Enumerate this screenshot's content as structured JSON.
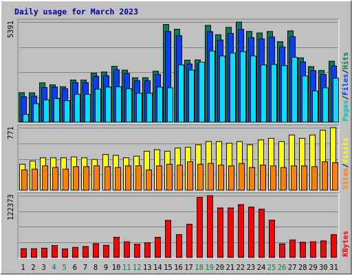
{
  "chart_data": {
    "type": "bar",
    "title": "Daily usage for March 2023",
    "categories": [
      "1",
      "2",
      "3",
      "4",
      "5",
      "6",
      "7",
      "8",
      "9",
      "10",
      "11",
      "12",
      "13",
      "14",
      "15",
      "16",
      "17",
      "18",
      "19",
      "20",
      "21",
      "22",
      "23",
      "24",
      "25",
      "26",
      "27",
      "28",
      "29",
      "30",
      "31"
    ],
    "weekend_days": [
      "4",
      "5",
      "11",
      "12",
      "18",
      "19",
      "25",
      "26"
    ],
    "panels": [
      {
        "id": "hits",
        "ymax_label": "5391",
        "ymax": 5391,
        "legend": [
          {
            "label": "Pages",
            "color": "#00c0c0"
          },
          {
            "label": "Files",
            "color": "#0040ff"
          },
          {
            "label": "Hits",
            "color": "#008040"
          }
        ],
        "series": [
          {
            "name": "Hits",
            "color": "#00805a",
            "values": [
              1590,
              1580,
              2120,
              2010,
              1910,
              2270,
              2270,
              2640,
              2700,
              3010,
              2800,
              2390,
              2390,
              2740,
              5260,
              5000,
              3340,
              3350,
              5210,
              4700,
              5100,
              5390,
              4880,
              4800,
              4880,
              4330,
              4910,
              3460,
              2990,
              2780,
              3280
            ]
          },
          {
            "name": "Files",
            "color": "#0040ff",
            "values": [
              1370,
              1400,
              1870,
              1890,
              1800,
              2130,
              2130,
              2470,
              2500,
              2820,
              2620,
              2230,
              2230,
              2570,
              4880,
              4650,
              3130,
              3140,
              4870,
              4420,
              4780,
              5000,
              4550,
              4480,
              4580,
              4050,
              4600,
              3240,
              2780,
              2570,
              3030
            ]
          },
          {
            "name": "Pages",
            "color": "#00e0ff",
            "values": [
              420,
              1000,
              1200,
              1270,
              1160,
              1500,
              1500,
              1780,
              1890,
              1910,
              1800,
              1560,
              1560,
              1890,
              1850,
              3080,
              2810,
              3230,
              3830,
              3560,
              3720,
              3800,
              3560,
              3080,
              3110,
              3040,
              3490,
              2490,
              1680,
              1850,
              2370
            ]
          }
        ]
      },
      {
        "id": "visits",
        "ymax_label": "771",
        "ymax": 771,
        "legend": [
          {
            "label": "Sites",
            "color": "#ff8000"
          },
          {
            "label": "Visits",
            "color": "#ffff00"
          }
        ],
        "series": [
          {
            "name": "Visits",
            "color": "#ffff00",
            "values": [
              320,
              360,
              400,
              400,
              400,
              410,
              400,
              380,
              440,
              430,
              400,
              420,
              480,
              500,
              480,
              520,
              530,
              560,
              600,
              600,
              580,
              600,
              560,
              620,
              640,
              600,
              680,
              640,
              680,
              740,
              771
            ]
          },
          {
            "name": "Sites",
            "color": "#ff8000",
            "values": [
              250,
              260,
              300,
              280,
              260,
              290,
              290,
              300,
              290,
              280,
              300,
              300,
              250,
              300,
              320,
              310,
              350,
              320,
              330,
              310,
              300,
              330,
              280,
              310,
              300,
              280,
              300,
              300,
              290,
              350,
              340
            ]
          }
        ]
      },
      {
        "id": "kbytes",
        "ymax_label": "122373",
        "ymax": 122373,
        "legend": [
          {
            "label": "KBytes",
            "color": "#ff0000"
          }
        ],
        "series": [
          {
            "name": "KBytes",
            "color": "#ff0000",
            "values": [
              17400,
              17300,
              18400,
              23800,
              16900,
              20100,
              21700,
              27300,
              24000,
              40100,
              31100,
              26500,
              29300,
              40000,
              73500,
              45200,
              65900,
              118900,
              122373,
              98000,
              98000,
              104600,
              99700,
              95800,
              74000,
              27000,
              34800,
              30200,
              31200,
              32800,
              45200
            ]
          }
        ]
      }
    ],
    "grid": true
  }
}
